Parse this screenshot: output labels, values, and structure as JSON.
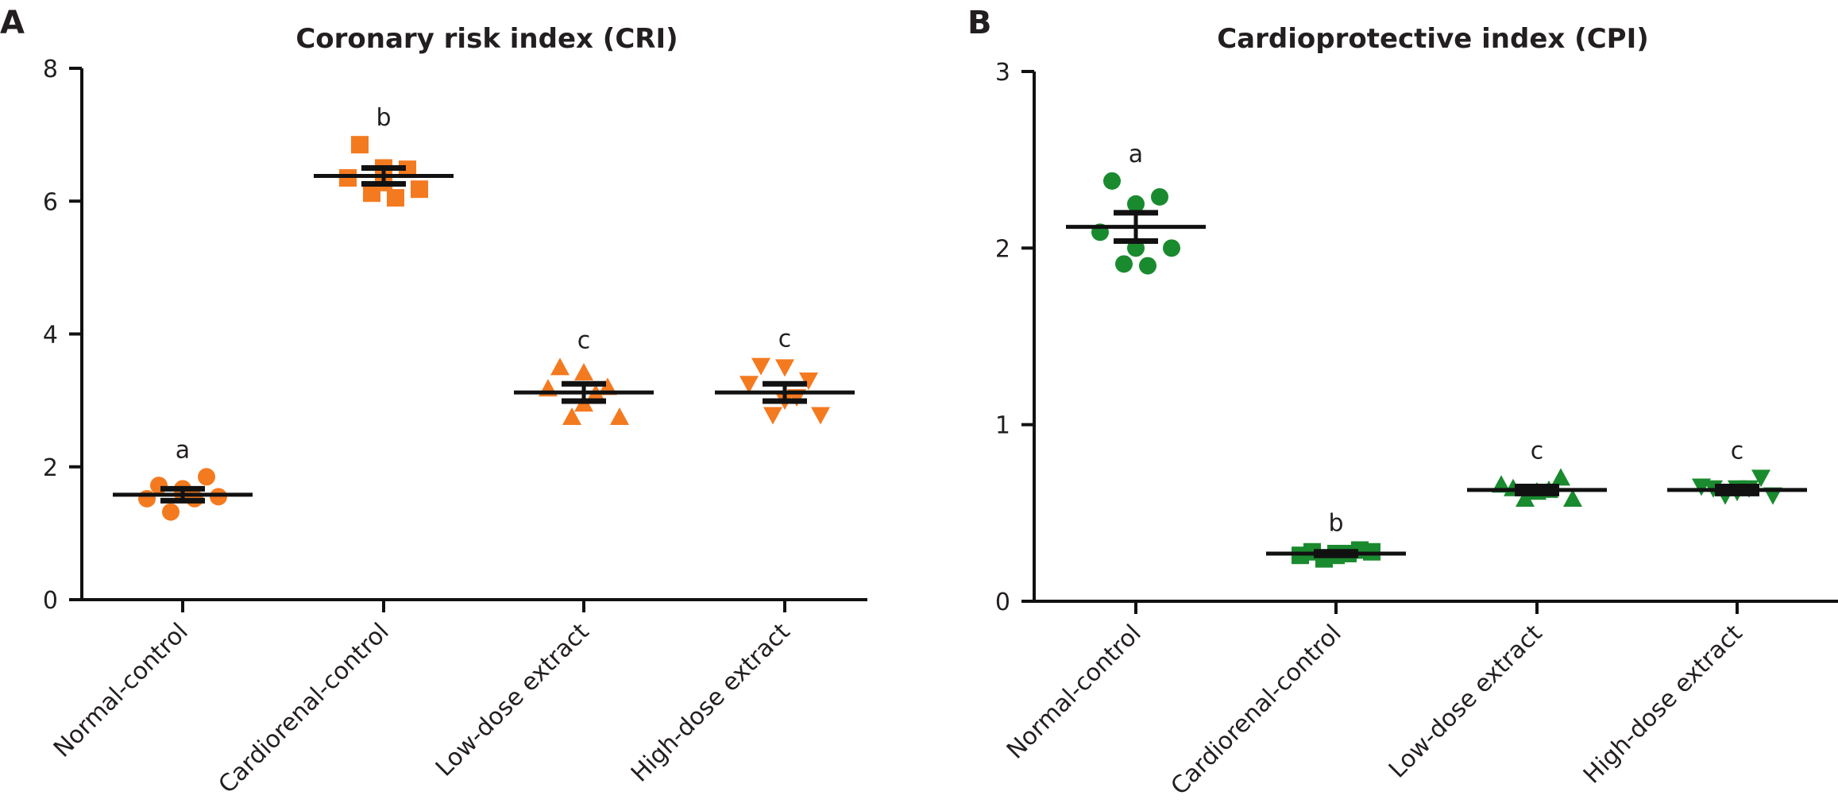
{
  "colors": {
    "orange": "#f47a20",
    "green": "#1a8a2f",
    "ink": "#111111"
  },
  "chart_data": [
    {
      "panel": "A",
      "type": "scatter",
      "title": "Coronary risk index (CRI)",
      "categories": [
        "Normal-control",
        "Cardiorenal-control",
        "Low-dose extract",
        "High-dose extract"
      ],
      "ylim": [
        0,
        8
      ],
      "yticks": [
        "0",
        "2",
        "4",
        "6",
        "8"
      ],
      "color": "#f47a20",
      "groups": [
        {
          "marker": "circle",
          "mean": 1.58,
          "sem": 0.09,
          "letter": "a",
          "points": [
            1.72,
            1.67,
            1.85,
            1.52,
            1.6,
            1.55,
            1.32,
            1.52
          ]
        },
        {
          "marker": "square",
          "mean": 6.38,
          "sem": 0.12,
          "letter": "b",
          "points": [
            6.85,
            6.5,
            6.48,
            6.35,
            6.28,
            6.18,
            6.12,
            6.05
          ]
        },
        {
          "marker": "triangle-up",
          "mean": 3.12,
          "sem": 0.13,
          "letter": "c",
          "points": [
            3.5,
            3.42,
            3.2,
            3.18,
            2.95,
            2.75,
            2.75,
            3.1
          ]
        },
        {
          "marker": "triangle-down",
          "mean": 3.12,
          "sem": 0.13,
          "letter": "c",
          "points": [
            3.52,
            3.5,
            3.3,
            3.25,
            3.0,
            2.78,
            2.78,
            3.05
          ]
        }
      ]
    },
    {
      "panel": "B",
      "type": "scatter",
      "title": "Cardioprotective index (CPI)",
      "categories": [
        "Normal-control",
        "Cardiorenal-control",
        "Low-dose extract",
        "High-dose extract"
      ],
      "ylim": [
        0,
        3
      ],
      "yticks": [
        "0",
        "1",
        "2",
        "3"
      ],
      "color": "#1a8a2f",
      "groups": [
        {
          "marker": "circle",
          "mean": 2.12,
          "sem": 0.08,
          "letter": "a",
          "points": [
            2.38,
            2.25,
            2.29,
            2.09,
            2.0,
            2.0,
            1.91,
            1.9
          ]
        },
        {
          "marker": "square",
          "mean": 0.27,
          "sem": 0.01,
          "letter": "b",
          "points": [
            0.28,
            0.27,
            0.29,
            0.26,
            0.26,
            0.28,
            0.24,
            0.27
          ]
        },
        {
          "marker": "triangle-up",
          "mean": 0.63,
          "sem": 0.02,
          "letter": "c",
          "points": [
            0.64,
            0.62,
            0.7,
            0.66,
            0.62,
            0.58,
            0.58,
            0.63
          ]
        },
        {
          "marker": "triangle-down",
          "mean": 0.63,
          "sem": 0.02,
          "letter": "c",
          "points": [
            0.64,
            0.64,
            0.7,
            0.65,
            0.62,
            0.6,
            0.6,
            0.64
          ]
        }
      ]
    }
  ]
}
